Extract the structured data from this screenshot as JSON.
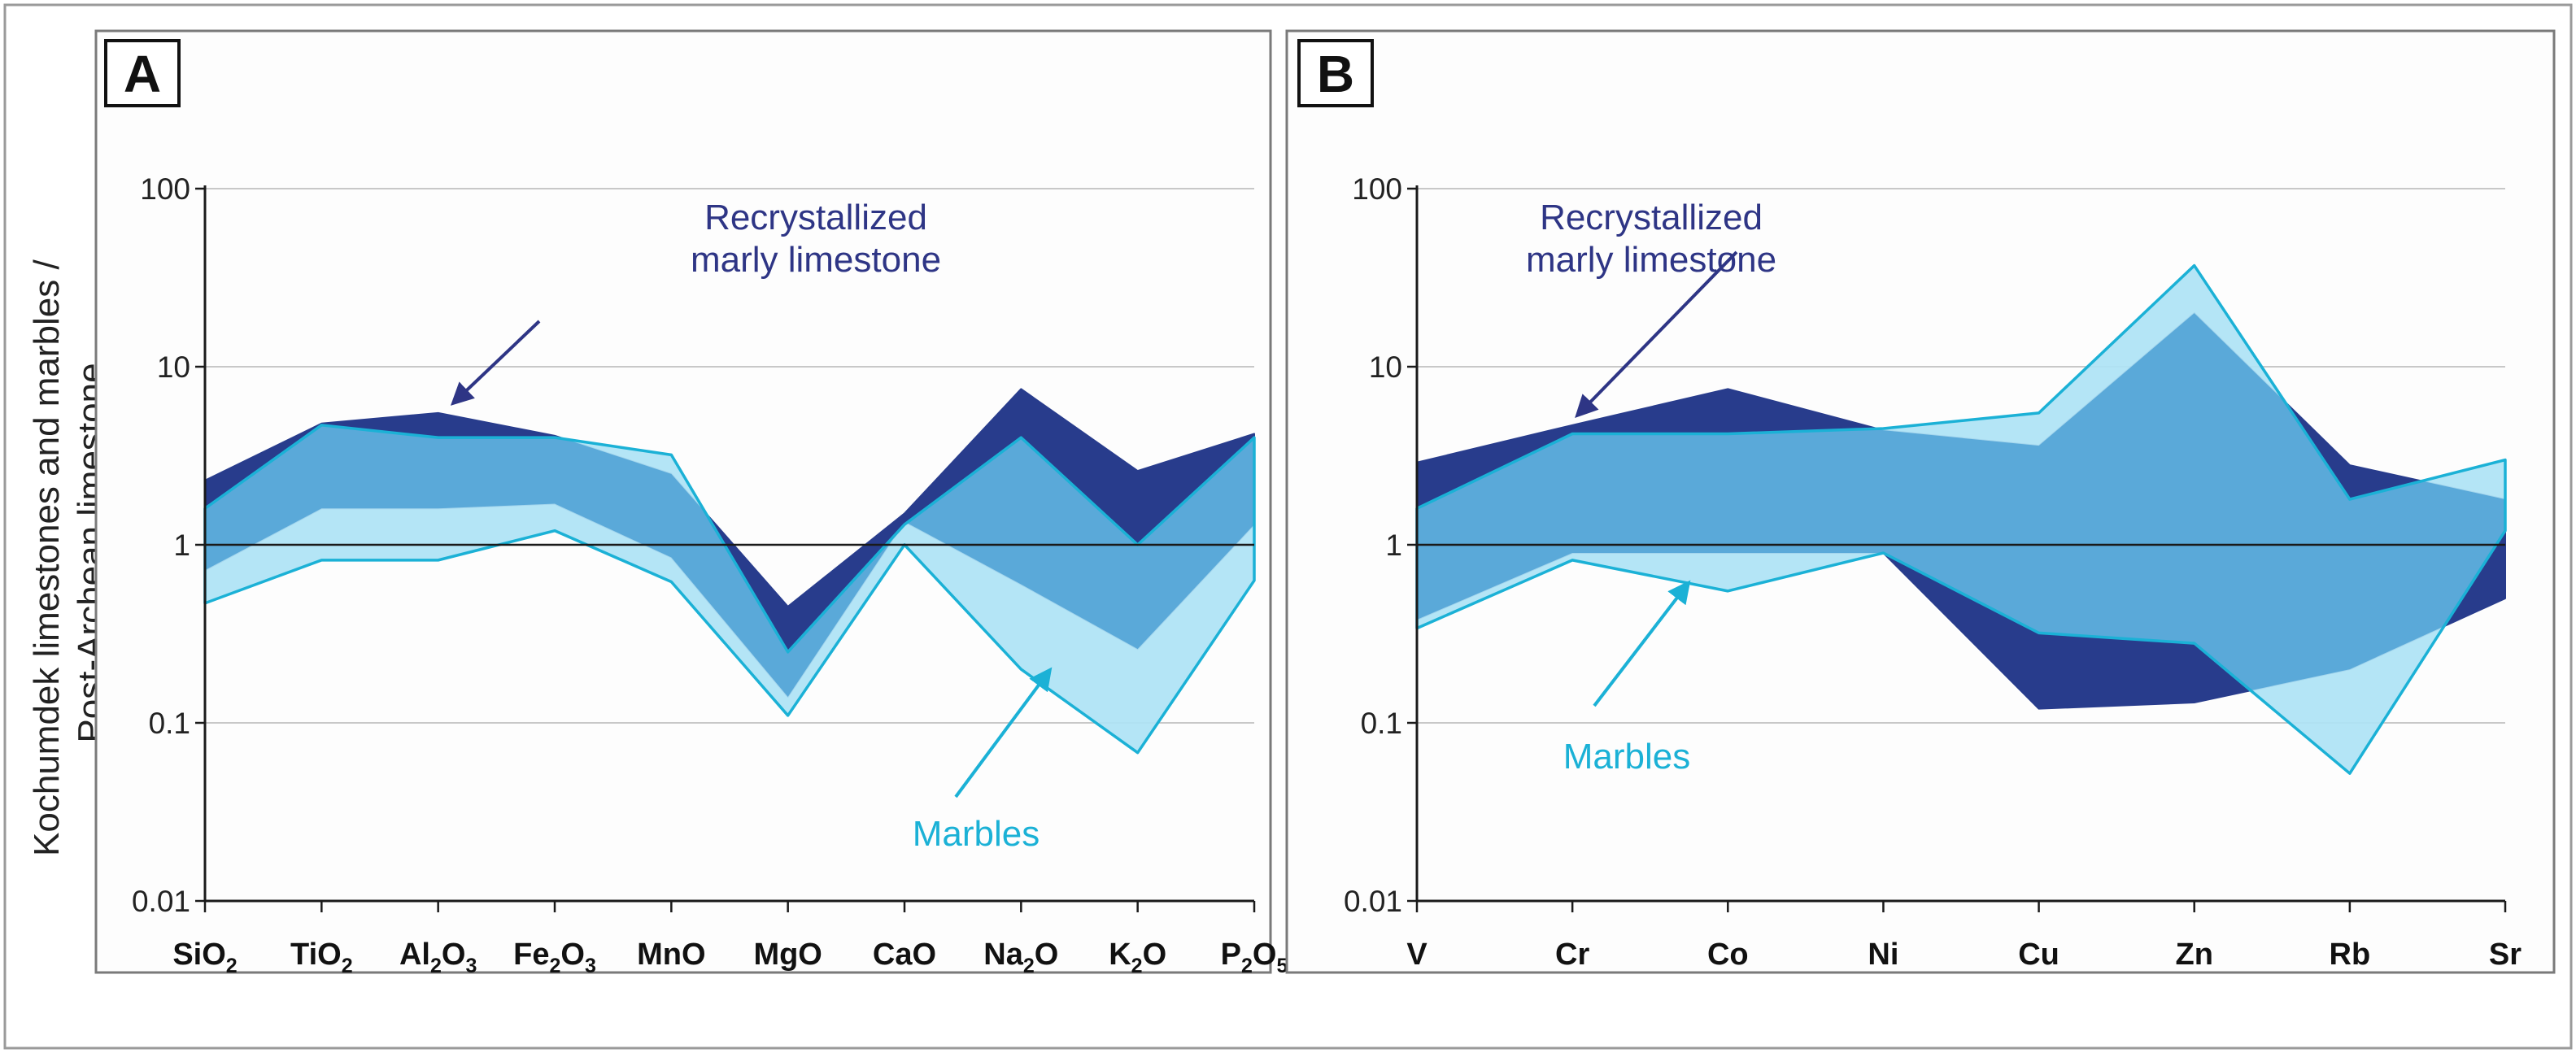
{
  "figure": {
    "ylabel_line1": "Kochumdek limestones and marbles /",
    "ylabel_line2": "Post-Archean limestone",
    "colors": {
      "recrystallized": "#283c8c",
      "recrystallized_annotation": "#2e3585",
      "marbles": "#aee3f5",
      "marbles_edge": "#1bb1d6",
      "overlap": "#5aa9d9",
      "marbles_annotation": "#1bb1d6"
    }
  },
  "chart_data": [
    {
      "panel": "A",
      "type": "area",
      "yscale": "log",
      "ylim": [
        0.01,
        100
      ],
      "y_ticks": [
        {
          "value": 100,
          "label": "100"
        },
        {
          "value": 10,
          "label": "10"
        },
        {
          "value": 1,
          "label": "1"
        },
        {
          "value": 0.1,
          "label": "0.1"
        },
        {
          "value": 0.01,
          "label": "0.01"
        }
      ],
      "categories": [
        {
          "base": "SiO",
          "sub": "2"
        },
        {
          "base": "TiO",
          "sub": "2"
        },
        {
          "base": "Al",
          "sub": "2",
          "base2": "O",
          "sub2": "3"
        },
        {
          "base": "Fe",
          "sub": "2",
          "base2": "O",
          "sub2": "3"
        },
        {
          "base": "MnO"
        },
        {
          "base": "MgO"
        },
        {
          "base": "CaO"
        },
        {
          "base": "Na",
          "sub": "2",
          "base2": "O"
        },
        {
          "base": "K",
          "sub": "2",
          "base2": "O"
        },
        {
          "base": "P",
          "sub": "2",
          "base2": "O",
          "sub2": "5"
        }
      ],
      "series": [
        {
          "name": "Recrystallized marly limestone",
          "upper": [
            2.3,
            4.8,
            5.5,
            4.1,
            2.5,
            0.45,
            1.5,
            7.5,
            2.6,
            4.2
          ],
          "lower": [
            0.72,
            1.6,
            1.6,
            1.7,
            0.85,
            0.14,
            1.35,
            0.6,
            0.26,
            1.3
          ]
        },
        {
          "name": "Marbles",
          "upper": [
            1.6,
            4.7,
            4.0,
            4.0,
            3.2,
            0.25,
            1.3,
            4.0,
            1.0,
            4.0
          ],
          "lower": [
            0.47,
            0.82,
            0.82,
            1.2,
            0.62,
            0.11,
            1.0,
            0.2,
            0.068,
            0.63
          ]
        }
      ],
      "annotations": [
        {
          "text_lines": [
            "Recrystallized",
            "marly limestone"
          ],
          "color_key": "recrystallized_annotation"
        },
        {
          "text_lines": [
            "Marbles"
          ],
          "color_key": "marbles_annotation"
        }
      ]
    },
    {
      "panel": "B",
      "type": "area",
      "yscale": "log",
      "ylim": [
        0.01,
        100
      ],
      "y_ticks": [
        {
          "value": 100,
          "label": "100"
        },
        {
          "value": 10,
          "label": "10"
        },
        {
          "value": 1,
          "label": "1"
        },
        {
          "value": 0.1,
          "label": "0.1"
        },
        {
          "value": 0.01,
          "label": "0.01"
        }
      ],
      "categories": [
        {
          "base": "V"
        },
        {
          "base": "Cr"
        },
        {
          "base": "Co"
        },
        {
          "base": "Ni"
        },
        {
          "base": "Cu"
        },
        {
          "base": "Zn"
        },
        {
          "base": "Rb"
        },
        {
          "base": "Sr"
        }
      ],
      "series": [
        {
          "name": "Recrystallized marly limestone",
          "upper": [
            2.9,
            4.7,
            7.5,
            4.4,
            3.6,
            20.0,
            2.8,
            1.8
          ],
          "lower": [
            0.38,
            0.9,
            0.9,
            0.9,
            0.12,
            0.13,
            0.2,
            0.5
          ]
        },
        {
          "name": "Marbles",
          "upper": [
            1.6,
            4.2,
            4.2,
            4.5,
            5.5,
            37.0,
            1.8,
            3.0
          ],
          "lower": [
            0.34,
            0.82,
            0.55,
            0.9,
            0.32,
            0.28,
            0.052,
            1.2
          ]
        }
      ],
      "annotations": [
        {
          "text_lines": [
            "Recrystallized",
            "marly limestone"
          ],
          "color_key": "recrystallized_annotation"
        },
        {
          "text_lines": [
            "Marbles"
          ],
          "color_key": "marbles_annotation"
        }
      ]
    }
  ]
}
